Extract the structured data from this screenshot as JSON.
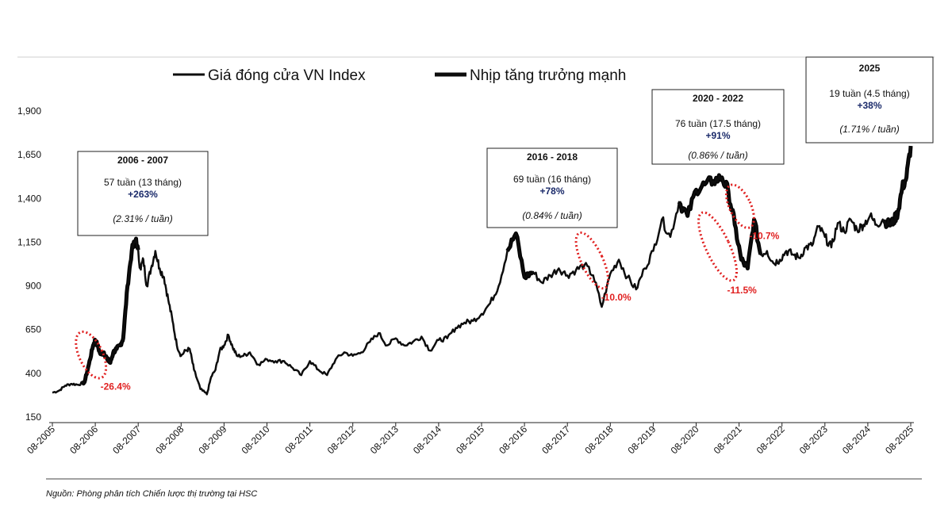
{
  "chart_data": {
    "type": "line",
    "legend": [
      "Giá đóng cửa VN Index",
      "Nhịp tăng trưởng mạnh"
    ],
    "ylim": [
      150,
      1900
    ],
    "yticks": [
      150,
      400,
      650,
      900,
      1150,
      1400,
      1650,
      1900
    ],
    "ytick_labels": [
      "150",
      "400",
      "650",
      "900",
      "1,150",
      "1,400",
      "1,650",
      "1,900"
    ],
    "xticks": [
      "08-2005",
      "08-2006",
      "08-2007",
      "08-2008",
      "08-2009",
      "08-2010",
      "08-2011",
      "08-2012",
      "08-2013",
      "08-2014",
      "08-2015",
      "08-2016",
      "08-2017",
      "08-2018",
      "08-2019",
      "08-2020",
      "08-2021",
      "08-2022",
      "08-2023",
      "08-2024",
      "08-2025"
    ],
    "xlim": [
      0,
      20
    ],
    "series": [
      {
        "name": "Giá đóng cửa VN Index",
        "x": [
          0,
          0.15,
          0.3,
          0.45,
          0.6,
          0.75,
          0.85,
          0.95,
          1.0,
          1.05,
          1.12,
          1.2,
          1.28,
          1.35,
          1.42,
          1.5,
          1.58,
          1.65,
          1.75,
          1.85,
          1.95,
          2.05,
          2.12,
          2.2,
          2.3,
          2.4,
          2.5,
          2.6,
          2.7,
          2.8,
          2.9,
          3.0,
          3.1,
          3.2,
          3.3,
          3.45,
          3.6,
          3.7,
          3.8,
          3.9,
          4.0,
          4.1,
          4.2,
          4.3,
          4.45,
          4.6,
          4.8,
          5.0,
          5.2,
          5.4,
          5.6,
          5.8,
          6.0,
          6.2,
          6.4,
          6.6,
          6.8,
          7.0,
          7.2,
          7.4,
          7.6,
          7.8,
          8.0,
          8.2,
          8.4,
          8.6,
          8.8,
          9.0,
          9.2,
          9.4,
          9.6,
          9.8,
          10.0,
          10.2,
          10.4,
          10.6,
          10.8,
          11.0,
          11.2,
          11.4,
          11.6,
          11.8,
          12.0,
          12.2,
          12.4,
          12.6,
          12.8,
          13.0,
          13.2,
          13.4,
          13.6,
          13.8,
          14.0,
          14.2,
          14.4,
          14.6,
          14.8,
          15.0,
          15.2,
          15.4,
          15.6,
          15.75,
          15.9,
          16.05,
          16.2,
          16.35,
          16.5,
          16.65,
          16.8,
          16.95,
          17.1,
          17.25,
          17.4,
          17.55,
          17.7,
          17.85,
          18.0,
          18.15,
          18.3,
          18.45,
          18.6,
          18.75,
          18.9,
          19.05,
          19.2,
          19.35,
          19.5,
          19.6,
          19.7,
          19.8,
          19.9,
          20.0
        ],
        "values": [
          290,
          300,
          330,
          340,
          335,
          350,
          450,
          560,
          590,
          560,
          510,
          520,
          480,
          460,
          520,
          540,
          560,
          600,
          900,
          1100,
          1170,
          1000,
          1050,
          900,
          1000,
          1100,
          1000,
          950,
          820,
          700,
          560,
          500,
          530,
          540,
          420,
          310,
          280,
          380,
          420,
          530,
          560,
          620,
          550,
          500,
          500,
          520,
          450,
          480,
          470,
          470,
          430,
          390,
          470,
          420,
          390,
          480,
          520,
          500,
          520,
          580,
          630,
          560,
          600,
          560,
          580,
          610,
          530,
          590,
          600,
          660,
          690,
          700,
          740,
          800,
          900,
          1100,
          1200,
          950,
          980,
          920,
          960,
          1000,
          960,
          990,
          1020,
          960,
          780,
          970,
          1050,
          950,
          880,
          1000,
          1100,
          1280,
          1180,
          1380,
          1300,
          1450,
          1480,
          1500,
          1520,
          1440,
          1250,
          1050,
          1000,
          1280,
          1080,
          1100,
          1030,
          1050,
          1100,
          1080,
          1060,
          1120,
          1130,
          1240,
          1180,
          1120,
          1260,
          1210,
          1280,
          1220,
          1250,
          1300,
          1250,
          1280,
          1250,
          1270,
          1320,
          1460,
          1520,
          1700
        ]
      },
      {
        "name": "Nhịp tăng trưởng mạnh",
        "segments": [
          [
            0.7,
            2.0
          ],
          [
            10.6,
            11.2
          ],
          [
            14.6,
            16.5
          ],
          [
            19.4,
            20.0
          ]
        ]
      }
    ],
    "annotations": [
      {
        "title": "2006 - 2007",
        "line1": "57 tuần (13 tháng)",
        "gain": "+263%",
        "rate": "(2.31% / tuần)"
      },
      {
        "title": "2016 - 2018",
        "line1": "69 tuần (16 tháng)",
        "gain": "+78%",
        "rate": "(0.84% / tuần)"
      },
      {
        "title": "2020 - 2022",
        "line1": "76 tuần (17.5 tháng)",
        "gain": "+91%",
        "rate": "(0.86% / tuần)"
      },
      {
        "title": "2025",
        "line1": "19 tuần (4.5 tháng)",
        "gain": "+38%",
        "rate": "(1.71% / tuần)"
      }
    ],
    "drawdowns": [
      {
        "label": "-26.4%",
        "x_from": 0.7,
        "x_to": 1.1,
        "y_from": 380,
        "y_to": 630
      },
      {
        "label": "-10.0%",
        "x_from": 12.4,
        "x_to": 12.75,
        "y_from": 890,
        "y_to": 1200
      },
      {
        "label": "-11.5%",
        "x_from": 15.3,
        "x_to": 15.7,
        "y_from": 930,
        "y_to": 1320
      },
      {
        "label": "-10.7%",
        "x_from": 15.85,
        "x_to": 16.2,
        "y_from": 1240,
        "y_to": 1470
      }
    ]
  },
  "source": "Nguồn: Phòng phân tích Chiến lược thị trường tại HSC"
}
